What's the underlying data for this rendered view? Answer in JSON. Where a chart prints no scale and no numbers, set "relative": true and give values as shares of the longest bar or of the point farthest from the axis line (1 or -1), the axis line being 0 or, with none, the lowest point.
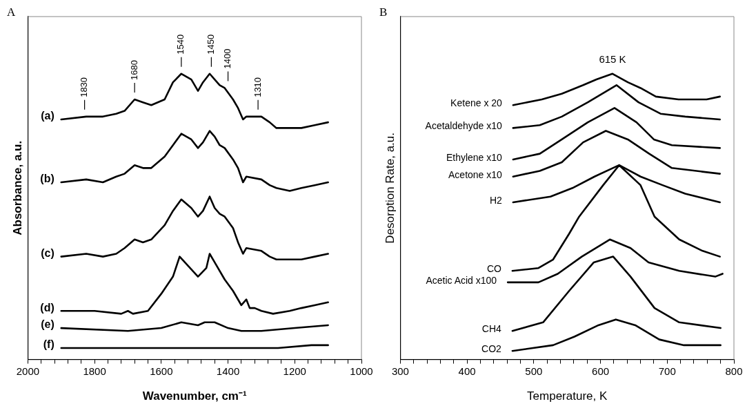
{
  "chart_data": [
    {
      "type": "line",
      "title": "A",
      "xlabel": "Wavenumber, cm⁻¹",
      "ylabel": "Absorbance, a.u.",
      "relative": true,
      "xlim": [
        2000,
        1000
      ],
      "xticks": [
        2000,
        {
          "value": 1960,
          "label": null
        },
        {
          "value": 1920,
          "label": null
        },
        {
          "value": 1880,
          "label": null
        },
        {
          "value": 1840,
          "label": null
        },
        1800,
        {
          "value": 1760,
          "label": null
        },
        {
          "value": 1720,
          "label": null
        },
        {
          "value": 1680,
          "label": null
        },
        {
          "value": 1640,
          "label": null
        },
        1600,
        {
          "value": 1560,
          "label": null
        },
        {
          "value": 1520,
          "label": null
        },
        {
          "value": 1480,
          "label": null
        },
        {
          "value": 1440,
          "label": null
        },
        1400,
        {
          "value": 1360,
          "label": null
        },
        {
          "value": 1320,
          "label": null
        },
        {
          "value": 1280,
          "label": null
        },
        {
          "value": 1240,
          "label": null
        },
        1200,
        {
          "value": 1160,
          "label": null
        },
        {
          "value": 1120,
          "label": null
        },
        {
          "value": 1080,
          "label": null
        },
        {
          "value": 1040,
          "label": null
        },
        1000
      ],
      "x": [
        1900,
        1825,
        1775,
        1735,
        1710,
        1680,
        1655,
        1630,
        1590,
        1565,
        1540,
        1510,
        1490,
        1475,
        1455,
        1440,
        1425,
        1410,
        1385,
        1370,
        1355,
        1345,
        1300,
        1275,
        1255,
        1215,
        1180,
        1140,
        1100
      ],
      "series": [
        {
          "name": "(a)",
          "color": "#000000",
          "values": [
            0.84,
            0.85,
            0.85,
            0.86,
            0.87,
            0.91,
            0.9,
            0.89,
            0.91,
            0.97,
            1.0,
            0.98,
            0.94,
            0.97,
            1.0,
            0.98,
            0.96,
            0.95,
            0.91,
            0.88,
            0.84,
            0.85,
            0.85,
            0.83,
            0.81,
            0.81,
            0.81,
            0.82,
            0.83
          ]
        },
        {
          "name": "(b)",
          "color": "#000000",
          "values": [
            0.62,
            0.63,
            0.62,
            0.64,
            0.65,
            0.68,
            0.67,
            0.67,
            0.71,
            0.75,
            0.79,
            0.77,
            0.74,
            0.76,
            0.8,
            0.78,
            0.75,
            0.74,
            0.7,
            0.67,
            0.62,
            0.64,
            0.63,
            0.61,
            0.6,
            0.59,
            0.6,
            0.61,
            0.62
          ]
        },
        {
          "name": "(c)",
          "color": "#000000",
          "values": [
            0.36,
            0.37,
            0.36,
            0.37,
            0.39,
            0.42,
            0.41,
            0.42,
            0.47,
            0.52,
            0.56,
            0.53,
            0.5,
            0.52,
            0.57,
            0.53,
            0.51,
            0.5,
            0.46,
            0.41,
            0.37,
            0.39,
            0.38,
            0.36,
            0.35,
            0.35,
            0.35,
            0.36,
            0.37
          ]
        },
        {
          "name": "(d)",
          "color": "#000000",
          "x": [
            1900,
            1800,
            1720,
            1700,
            1685,
            1640,
            1600,
            1565,
            1545,
            1490,
            1465,
            1455,
            1440,
            1410,
            1385,
            1360,
            1345,
            1335,
            1320,
            1300,
            1265,
            1215,
            1180,
            1140,
            1100
          ],
          "values": [
            0.17,
            0.17,
            0.16,
            0.17,
            0.16,
            0.17,
            0.23,
            0.29,
            0.36,
            0.29,
            0.32,
            0.37,
            0.34,
            0.28,
            0.24,
            0.19,
            0.21,
            0.18,
            0.18,
            0.17,
            0.16,
            0.17,
            0.18,
            0.19,
            0.2
          ]
        },
        {
          "name": "(e)",
          "color": "#000000",
          "x": [
            1900,
            1700,
            1600,
            1540,
            1490,
            1470,
            1440,
            1400,
            1360,
            1300,
            1200,
            1100
          ],
          "values": [
            0.11,
            0.1,
            0.11,
            0.13,
            0.12,
            0.13,
            0.13,
            0.11,
            0.1,
            0.1,
            0.11,
            0.12
          ]
        },
        {
          "name": "(f)",
          "color": "#000000",
          "x": [
            1900,
            1600,
            1400,
            1250,
            1150,
            1100
          ],
          "values": [
            0.04,
            0.04,
            0.04,
            0.04,
            0.05,
            0.05
          ]
        }
      ],
      "annotations": [
        {
          "text": "1830",
          "x": 1830,
          "y": 0.85
        },
        {
          "text": "1680",
          "x": 1680,
          "y": 0.91
        },
        {
          "text": "1540",
          "x": 1540,
          "y": 1.0
        },
        {
          "text": "1450",
          "x": 1450,
          "y": 1.0
        },
        {
          "text": "1400",
          "x": 1400,
          "y": 0.95
        },
        {
          "text": "1310",
          "x": 1310,
          "y": 0.85
        }
      ]
    },
    {
      "type": "line",
      "title": "B",
      "xlabel": "Temperature, K",
      "ylabel": "Desorption Rate, a.u.",
      "relative": true,
      "xlim": [
        300,
        800
      ],
      "xticks": [
        300,
        {
          "value": 320,
          "label": null
        },
        {
          "value": 340,
          "label": null
        },
        {
          "value": 360,
          "label": null
        },
        {
          "value": 380,
          "label": null
        },
        400,
        {
          "value": 420,
          "label": null
        },
        {
          "value": 440,
          "label": null
        },
        {
          "value": 460,
          "label": null
        },
        {
          "value": 480,
          "label": null
        },
        500,
        {
          "value": 520,
          "label": null
        },
        {
          "value": 540,
          "label": null
        },
        {
          "value": 560,
          "label": null
        },
        {
          "value": 580,
          "label": null
        },
        600,
        {
          "value": 620,
          "label": null
        },
        {
          "value": 640,
          "label": null
        },
        {
          "value": 660,
          "label": null
        },
        {
          "value": 680,
          "label": null
        },
        700,
        {
          "value": 720,
          "label": null
        },
        {
          "value": 740,
          "label": null
        },
        {
          "value": 760,
          "label": null
        },
        {
          "value": 780,
          "label": null
        },
        800
      ],
      "series": [
        {
          "name": "Ketene x 20",
          "color": "#000000",
          "x": [
            469,
            512,
            542,
            574,
            594,
            618,
            641,
            660,
            683,
            717,
            759,
            779
          ],
          "values": [
            0.89,
            0.91,
            0.93,
            0.96,
            0.98,
            1.0,
            0.97,
            0.95,
            0.92,
            0.91,
            0.91,
            0.92
          ]
        },
        {
          "name": "Acetaldehyde x10",
          "color": "#000000",
          "x": [
            469,
            509,
            542,
            581,
            624,
            657,
            690,
            727,
            779
          ],
          "values": [
            0.81,
            0.82,
            0.85,
            0.9,
            0.96,
            0.9,
            0.86,
            0.85,
            0.84
          ]
        },
        {
          "name": "Ethylene x10",
          "color": "#000000",
          "x": [
            469,
            509,
            542,
            581,
            621,
            654,
            680,
            707,
            779
          ],
          "values": [
            0.7,
            0.72,
            0.77,
            0.83,
            0.88,
            0.83,
            0.77,
            0.75,
            0.74
          ]
        },
        {
          "name": "Acetone x10",
          "color": "#000000",
          "x": [
            469,
            509,
            542,
            574,
            608,
            641,
            673,
            707,
            779
          ],
          "values": [
            0.64,
            0.66,
            0.69,
            0.76,
            0.8,
            0.77,
            0.72,
            0.67,
            0.65
          ]
        },
        {
          "name": "H2",
          "color": "#000000",
          "x": [
            469,
            525,
            558,
            591,
            628,
            660,
            693,
            727,
            779
          ],
          "values": [
            0.55,
            0.57,
            0.6,
            0.64,
            0.68,
            0.64,
            0.61,
            0.58,
            0.55
          ]
        },
        {
          "name": "CO",
          "color": "#000000",
          "x": [
            468,
            507,
            529,
            553,
            568,
            604,
            628,
            660,
            681,
            718,
            753,
            779
          ],
          "values": [
            0.31,
            0.32,
            0.35,
            0.44,
            0.5,
            0.61,
            0.68,
            0.61,
            0.5,
            0.42,
            0.38,
            0.36
          ]
        },
        {
          "name": "Acetic Acid x100",
          "color": "#000000",
          "x": [
            461,
            507,
            536,
            572,
            614,
            645,
            672,
            718,
            772,
            783
          ],
          "values": [
            0.27,
            0.27,
            0.3,
            0.36,
            0.42,
            0.39,
            0.34,
            0.31,
            0.29,
            0.3
          ]
        },
        {
          "name": "CH4",
          "color": "#000000",
          "x": [
            468,
            514,
            553,
            590,
            619,
            645,
            681,
            718,
            780
          ],
          "values": [
            0.1,
            0.13,
            0.24,
            0.34,
            0.36,
            0.29,
            0.18,
            0.13,
            0.11
          ]
        },
        {
          "name": "CO2",
          "color": "#000000",
          "x": [
            468,
            529,
            561,
            597,
            623,
            652,
            688,
            725,
            780
          ],
          "values": [
            0.03,
            0.05,
            0.08,
            0.12,
            0.14,
            0.12,
            0.07,
            0.05,
            0.05
          ]
        }
      ],
      "annotations": [
        {
          "text": "615 K",
          "x": 618,
          "y": 1.0
        }
      ]
    }
  ]
}
